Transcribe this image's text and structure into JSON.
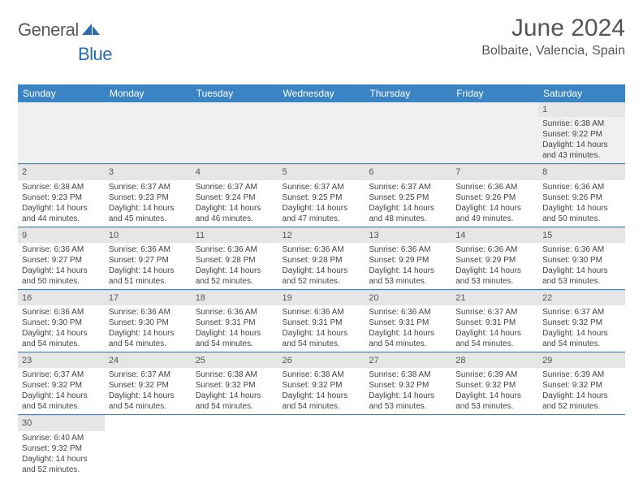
{
  "logo": {
    "part1": "General",
    "part2": "Blue",
    "sail_color": "#2a6cb0"
  },
  "title": "June 2024",
  "location": "Bolbaite, Valencia, Spain",
  "colors": {
    "header_bg": "#3b84c4",
    "header_fg": "#ffffff",
    "daynum_bg": "#e6e6e6",
    "row_divider": "#3b84c4",
    "first_row_bg": "#f0f0f0"
  },
  "dayNames": [
    "Sunday",
    "Monday",
    "Tuesday",
    "Wednesday",
    "Thursday",
    "Friday",
    "Saturday"
  ],
  "weeks": [
    [
      null,
      null,
      null,
      null,
      null,
      null,
      {
        "n": "1",
        "sunrise": "6:38 AM",
        "sunset": "9:22 PM",
        "daylight": "14 hours and 43 minutes."
      }
    ],
    [
      {
        "n": "2",
        "sunrise": "6:38 AM",
        "sunset": "9:23 PM",
        "daylight": "14 hours and 44 minutes."
      },
      {
        "n": "3",
        "sunrise": "6:37 AM",
        "sunset": "9:23 PM",
        "daylight": "14 hours and 45 minutes."
      },
      {
        "n": "4",
        "sunrise": "6:37 AM",
        "sunset": "9:24 PM",
        "daylight": "14 hours and 46 minutes."
      },
      {
        "n": "5",
        "sunrise": "6:37 AM",
        "sunset": "9:25 PM",
        "daylight": "14 hours and 47 minutes."
      },
      {
        "n": "6",
        "sunrise": "6:37 AM",
        "sunset": "9:25 PM",
        "daylight": "14 hours and 48 minutes."
      },
      {
        "n": "7",
        "sunrise": "6:36 AM",
        "sunset": "9:26 PM",
        "daylight": "14 hours and 49 minutes."
      },
      {
        "n": "8",
        "sunrise": "6:36 AM",
        "sunset": "9:26 PM",
        "daylight": "14 hours and 50 minutes."
      }
    ],
    [
      {
        "n": "9",
        "sunrise": "6:36 AM",
        "sunset": "9:27 PM",
        "daylight": "14 hours and 50 minutes."
      },
      {
        "n": "10",
        "sunrise": "6:36 AM",
        "sunset": "9:27 PM",
        "daylight": "14 hours and 51 minutes."
      },
      {
        "n": "11",
        "sunrise": "6:36 AM",
        "sunset": "9:28 PM",
        "daylight": "14 hours and 52 minutes."
      },
      {
        "n": "12",
        "sunrise": "6:36 AM",
        "sunset": "9:28 PM",
        "daylight": "14 hours and 52 minutes."
      },
      {
        "n": "13",
        "sunrise": "6:36 AM",
        "sunset": "9:29 PM",
        "daylight": "14 hours and 53 minutes."
      },
      {
        "n": "14",
        "sunrise": "6:36 AM",
        "sunset": "9:29 PM",
        "daylight": "14 hours and 53 minutes."
      },
      {
        "n": "15",
        "sunrise": "6:36 AM",
        "sunset": "9:30 PM",
        "daylight": "14 hours and 53 minutes."
      }
    ],
    [
      {
        "n": "16",
        "sunrise": "6:36 AM",
        "sunset": "9:30 PM",
        "daylight": "14 hours and 54 minutes."
      },
      {
        "n": "17",
        "sunrise": "6:36 AM",
        "sunset": "9:30 PM",
        "daylight": "14 hours and 54 minutes."
      },
      {
        "n": "18",
        "sunrise": "6:36 AM",
        "sunset": "9:31 PM",
        "daylight": "14 hours and 54 minutes."
      },
      {
        "n": "19",
        "sunrise": "6:36 AM",
        "sunset": "9:31 PM",
        "daylight": "14 hours and 54 minutes."
      },
      {
        "n": "20",
        "sunrise": "6:36 AM",
        "sunset": "9:31 PM",
        "daylight": "14 hours and 54 minutes."
      },
      {
        "n": "21",
        "sunrise": "6:37 AM",
        "sunset": "9:31 PM",
        "daylight": "14 hours and 54 minutes."
      },
      {
        "n": "22",
        "sunrise": "6:37 AM",
        "sunset": "9:32 PM",
        "daylight": "14 hours and 54 minutes."
      }
    ],
    [
      {
        "n": "23",
        "sunrise": "6:37 AM",
        "sunset": "9:32 PM",
        "daylight": "14 hours and 54 minutes."
      },
      {
        "n": "24",
        "sunrise": "6:37 AM",
        "sunset": "9:32 PM",
        "daylight": "14 hours and 54 minutes."
      },
      {
        "n": "25",
        "sunrise": "6:38 AM",
        "sunset": "9:32 PM",
        "daylight": "14 hours and 54 minutes."
      },
      {
        "n": "26",
        "sunrise": "6:38 AM",
        "sunset": "9:32 PM",
        "daylight": "14 hours and 54 minutes."
      },
      {
        "n": "27",
        "sunrise": "6:38 AM",
        "sunset": "9:32 PM",
        "daylight": "14 hours and 53 minutes."
      },
      {
        "n": "28",
        "sunrise": "6:39 AM",
        "sunset": "9:32 PM",
        "daylight": "14 hours and 53 minutes."
      },
      {
        "n": "29",
        "sunrise": "6:39 AM",
        "sunset": "9:32 PM",
        "daylight": "14 hours and 52 minutes."
      }
    ],
    [
      {
        "n": "30",
        "sunrise": "6:40 AM",
        "sunset": "9:32 PM",
        "daylight": "14 hours and 52 minutes."
      },
      null,
      null,
      null,
      null,
      null,
      null
    ]
  ],
  "labels": {
    "sunrise": "Sunrise:",
    "sunset": "Sunset:",
    "daylight": "Daylight:"
  }
}
